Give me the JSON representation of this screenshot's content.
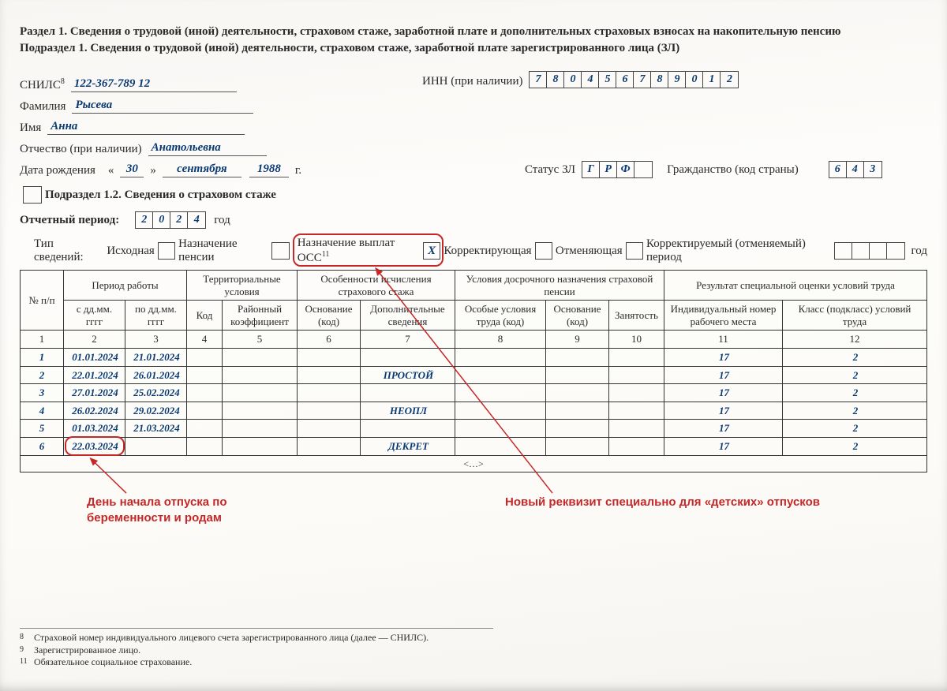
{
  "header": {
    "line1": "Раздел 1. Сведения о трудовой (иной) деятельности, страховом стаже, заработной плате и дополнительных страховых взносах на накопительную пенсию",
    "line2": "Подраздел 1. Сведения о трудовой (иной) деятельности, страховом стаже, заработной плате зарегистрированного лица (ЗЛ)"
  },
  "person": {
    "snils_label": "СНИЛС",
    "snils_sup": "8",
    "snils_value": "122-367-789 12",
    "inn_label": "ИНН (при наличии)",
    "inn_digits": [
      "7",
      "8",
      "0",
      "4",
      "5",
      "6",
      "7",
      "8",
      "9",
      "0",
      "1",
      "2"
    ],
    "surname_label": "Фамилия",
    "surname": "Рысева",
    "name_label": "Имя",
    "name": "Анна",
    "patronymic_label": "Отчество (при наличии)",
    "patronymic": "Анатольевна",
    "dob_label": "Дата рождения",
    "dob_day": "30",
    "dob_month": "сентября",
    "dob_year": "1988",
    "dob_suffix": "г.",
    "status_label": "Статус ЗЛ",
    "status_digits": [
      "Г",
      "Р",
      "Ф",
      ""
    ],
    "citizenship_label": "Гражданство (код страны)",
    "citizenship_digits": [
      "6",
      "4",
      "3"
    ]
  },
  "subsection": {
    "title": "Подраздел 1.2. Сведения о страховом стаже",
    "period_label": "Отчетный период:",
    "period_digits": [
      "2",
      "0",
      "2",
      "4"
    ],
    "period_suffix": "год"
  },
  "info_type": {
    "label": "Тип сведений:",
    "original": "Исходная",
    "pension": "Назначение пенсии",
    "oss_label": "Назначение выплат ОСС",
    "oss_sup": "11",
    "oss_mark": "X",
    "correcting": "Корректирующая",
    "cancelling": "Отменяющая",
    "corrected_period": "Корректируемый (отменяемый) период",
    "year_suffix": "год"
  },
  "table": {
    "headers": {
      "num": "№ п/п",
      "period": "Период работы",
      "from": "с дд.мм. гггг",
      "to": "по дд.мм. гггг",
      "terr": "Территориальные условия",
      "code": "Код",
      "coef": "Районный коэффициент",
      "stazh": "Особенности исчисления страхового стажа",
      "osnov": "Основание (код)",
      "dop": "Дополнительные сведения",
      "early": "Условия досрочного назначения страховой пенсии",
      "spec_cond": "Особые условия труда (код)",
      "osnov2": "Основание (код)",
      "employment": "Занятость",
      "result": "Результат специальной оценки условий труда",
      "workplace": "Индивидуальный номер рабочего места",
      "class": "Класс (подкласс) условий труда"
    },
    "col_numbers": [
      "1",
      "2",
      "3",
      "4",
      "5",
      "6",
      "7",
      "8",
      "9",
      "10",
      "11",
      "12"
    ],
    "rows": [
      {
        "n": "1",
        "from": "01.01.2024",
        "to": "21.01.2024",
        "dop": "",
        "wp": "17",
        "cl": "2"
      },
      {
        "n": "2",
        "from": "22.01.2024",
        "to": "26.01.2024",
        "dop": "ПРОСТОЙ",
        "wp": "17",
        "cl": "2"
      },
      {
        "n": "3",
        "from": "27.01.2024",
        "to": "25.02.2024",
        "dop": "",
        "wp": "17",
        "cl": "2"
      },
      {
        "n": "4",
        "from": "26.02.2024",
        "to": "29.02.2024",
        "dop": "НЕОПЛ",
        "wp": "17",
        "cl": "2"
      },
      {
        "n": "5",
        "from": "01.03.2024",
        "to": "21.03.2024",
        "dop": "",
        "wp": "17",
        "cl": "2"
      },
      {
        "n": "6",
        "from": "22.03.2024",
        "to": "",
        "dop": "ДЕКРЕТ",
        "wp": "17",
        "cl": "2"
      }
    ],
    "ellipsis": "<…>"
  },
  "annotations": {
    "left": "День начала отпуска по беременности и родам",
    "right": "Новый реквизит специально для «детских» отпусков"
  },
  "footnotes": {
    "f8_n": "8",
    "f8": "Страховой номер индивидуального лицевого счета зарегистрированного лица (далее — СНИЛС).",
    "f9_n": "9",
    "f9": "Зарегистрированное лицо.",
    "f11_n": "11",
    "f11": "Обязательное социальное страхование."
  },
  "colors": {
    "ink": "#2a2a2a",
    "value": "#0a3a72",
    "annotation": "#c62828"
  }
}
